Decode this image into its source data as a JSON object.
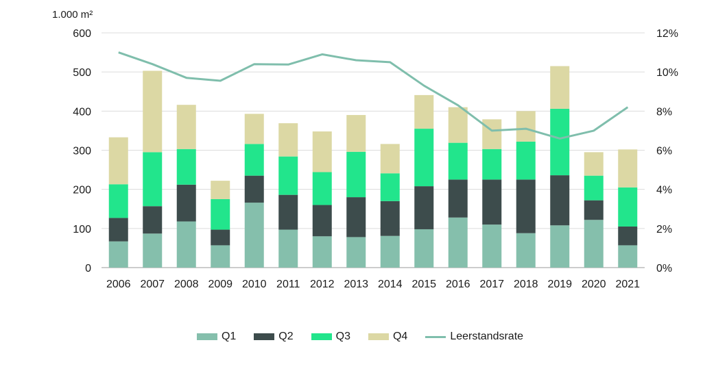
{
  "chart_data": {
    "type": "bar",
    "stacked": true,
    "unit_label": "1.000 m²",
    "categories": [
      "2006",
      "2007",
      "2008",
      "2009",
      "2010",
      "2011",
      "2012",
      "2013",
      "2014",
      "2015",
      "2016",
      "2017",
      "2018",
      "2019",
      "2020",
      "2021"
    ],
    "series": [
      {
        "name": "Q1",
        "color": "#85bfac",
        "values": [
          67,
          87,
          118,
          57,
          166,
          97,
          80,
          78,
          81,
          98,
          128,
          110,
          88,
          108,
          122,
          57
        ]
      },
      {
        "name": "Q2",
        "color": "#3d4c4c",
        "values": [
          60,
          70,
          94,
          40,
          69,
          89,
          80,
          102,
          89,
          110,
          97,
          115,
          137,
          128,
          50,
          48
        ]
      },
      {
        "name": "Q3",
        "color": "#22e58c",
        "values": [
          86,
          138,
          91,
          78,
          81,
          98,
          84,
          116,
          71,
          147,
          94,
          78,
          97,
          170,
          63,
          100
        ]
      },
      {
        "name": "Q4",
        "color": "#dcd8a4",
        "values": [
          120,
          208,
          113,
          47,
          77,
          85,
          104,
          94,
          75,
          86,
          91,
          76,
          78,
          109,
          60,
          97
        ]
      }
    ],
    "line_series": {
      "name": "Leerstandsrate",
      "color": "#7fbeac",
      "axis": "right",
      "values": [
        11.0,
        10.4,
        9.7,
        9.55,
        10.4,
        10.38,
        10.9,
        10.6,
        10.5,
        9.3,
        8.3,
        7.0,
        7.1,
        6.6,
        7.0,
        8.2
      ]
    },
    "y_left": {
      "min": 0,
      "max": 600,
      "ticks": [
        0,
        100,
        200,
        300,
        400,
        500,
        600
      ]
    },
    "y_right": {
      "min": 0,
      "max": 12,
      "ticks": [
        "0%",
        "2%",
        "4%",
        "6%",
        "8%",
        "10%",
        "12%"
      ]
    },
    "grid": true,
    "legend_position": "bottom-center"
  },
  "legend": {
    "items": [
      {
        "label": "Q1",
        "color": "#85bfac",
        "kind": "box"
      },
      {
        "label": "Q2",
        "color": "#3d4c4c",
        "kind": "box"
      },
      {
        "label": "Q3",
        "color": "#22e58c",
        "kind": "box"
      },
      {
        "label": "Q4",
        "color": "#dcd8a4",
        "kind": "box"
      },
      {
        "label": "Leerstandsrate",
        "color": "#7fbeac",
        "kind": "line"
      }
    ]
  }
}
